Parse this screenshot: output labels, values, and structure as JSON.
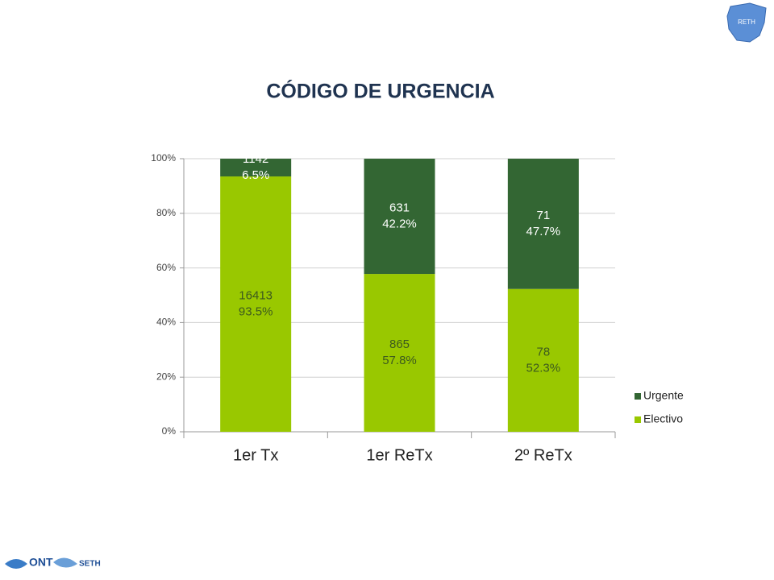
{
  "chart_data": {
    "type": "stacked_bar_100",
    "title": "CÓDIGO DE URGENCIA",
    "categories": [
      "1er Tx",
      "1er ReTx",
      "2º ReTx"
    ],
    "series": [
      {
        "name": "Electivo",
        "color": "#99c800",
        "values": [
          93.5,
          57.8,
          52.3
        ],
        "value_labels": [
          "93.5%",
          "57.8%",
          "52.3%"
        ],
        "counts": [
          16413,
          865,
          78
        ],
        "label_color": "#3d5a1e"
      },
      {
        "name": "Urgente",
        "color": "#336633",
        "values": [
          6.5,
          42.2,
          47.7
        ],
        "value_labels": [
          "6.5%",
          "42.2%",
          "47.7%"
        ],
        "counts": [
          1142,
          631,
          71
        ],
        "label_color": "#ffffff"
      }
    ],
    "ylim": [
      0,
      100
    ],
    "yticks": [
      {
        "value": 0,
        "label": "0%"
      },
      {
        "value": 20,
        "label": "20%"
      },
      {
        "value": 40,
        "label": "40%"
      },
      {
        "value": 60,
        "label": "60%"
      },
      {
        "value": 80,
        "label": "80%"
      },
      {
        "value": 100,
        "label": "100%"
      }
    ],
    "grid": true,
    "legend": "right"
  },
  "logos": {
    "reth": "RETH",
    "ont": "ONT",
    "seth": "SETH"
  }
}
